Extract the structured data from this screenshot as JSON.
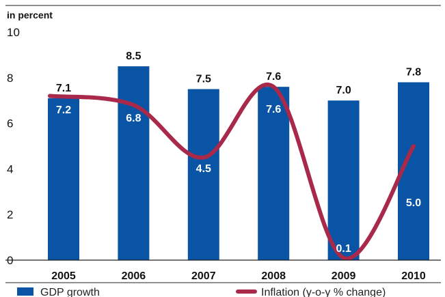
{
  "colors": {
    "bar": "#0a54a6",
    "line": "#a8294a",
    "axis": "#222222"
  },
  "chart_data": {
    "type": "bar",
    "unit_label": "in percent",
    "categories": [
      "2005",
      "2006",
      "2007",
      "2008",
      "2009",
      "2010"
    ],
    "ylim": [
      0,
      10
    ],
    "yticks": [
      "0",
      "2",
      "4",
      "6",
      "8",
      "10"
    ],
    "series": [
      {
        "name": "GDP growth",
        "type": "bar",
        "values": [
          7.1,
          8.5,
          7.5,
          7.6,
          7.0,
          7.8
        ],
        "labels": [
          "7.1",
          "8.5",
          "7.5",
          "7.6",
          "7.0",
          "7.8"
        ]
      },
      {
        "name": "Inflation (y-o-y % change)",
        "type": "line",
        "values": [
          7.2,
          6.8,
          4.5,
          7.6,
          0.1,
          5.0
        ],
        "labels": [
          "7.2",
          "6.8",
          "4.5",
          "7.6",
          "0.1",
          "5.0"
        ]
      }
    ],
    "legend": "bottom"
  }
}
